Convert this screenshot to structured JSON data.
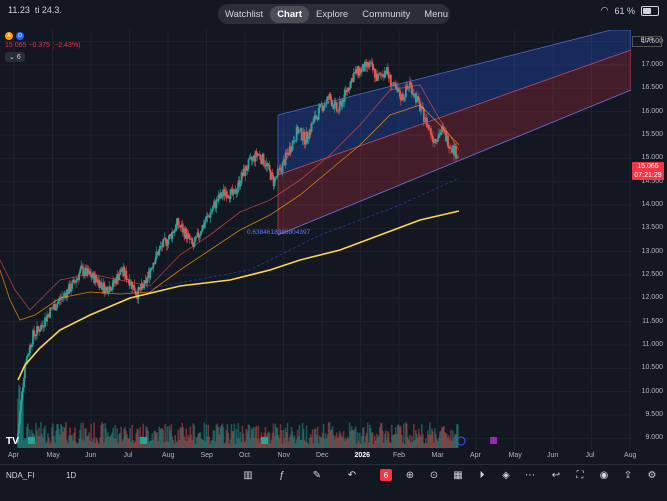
{
  "status_bar": {
    "time": "11.23",
    "date": "ti 24.3.",
    "battery": "61 %"
  },
  "nav": {
    "tabs": [
      {
        "label": "Watchlist",
        "active": false
      },
      {
        "label": "Chart",
        "active": true
      },
      {
        "label": "Explore",
        "active": false
      },
      {
        "label": "Community",
        "active": false
      },
      {
        "label": "Menu",
        "active": false
      }
    ]
  },
  "legend": {
    "badge_a": "A",
    "badge_d": "D",
    "change": "15.065 −0.375 (−2.43%)",
    "indicator_count": "6"
  },
  "price_axis": {
    "currency": "EUR",
    "ticks": [
      "17.500",
      "17.000",
      "16.500",
      "16.000",
      "15.500",
      "15.000",
      "14.500",
      "14.000",
      "13.500",
      "13.000",
      "12.500",
      "12.000",
      "11.500",
      "11.000",
      "10.500",
      "10.000",
      "9.500",
      "9.000"
    ],
    "last_price": "15.065",
    "countdown": "07:21:29"
  },
  "time_axis": {
    "ticks": [
      {
        "label": "Apr",
        "bold": false
      },
      {
        "label": "May",
        "bold": false
      },
      {
        "label": "Jun",
        "bold": false
      },
      {
        "label": "Jul",
        "bold": false
      },
      {
        "label": "Aug",
        "bold": false
      },
      {
        "label": "Sep",
        "bold": false
      },
      {
        "label": "Oct",
        "bold": false
      },
      {
        "label": "Nov",
        "bold": false
      },
      {
        "label": "Dec",
        "bold": false
      },
      {
        "label": "2026",
        "bold": true
      },
      {
        "label": "Feb",
        "bold": false
      },
      {
        "label": "Mar",
        "bold": false
      },
      {
        "label": "Apr",
        "bold": false
      },
      {
        "label": "May",
        "bold": false
      },
      {
        "label": "Jun",
        "bold": false
      },
      {
        "label": "Jul",
        "bold": false
      },
      {
        "label": "Aug",
        "bold": false
      }
    ]
  },
  "fib_label": "0.6384618388804397",
  "bottom_bar": {
    "symbol": "NDA_FI",
    "interval": "1D"
  },
  "colors": {
    "up": "#26a69a",
    "down": "#ef5350",
    "ma200": "#ffd54f",
    "channel_blue": "#2962ff",
    "channel_red": "#f23645"
  },
  "chart_data": {
    "type": "candlestick",
    "title": "NDA_FI · 1D",
    "y_axis_range": [
      8.75,
      17.75
    ],
    "last_price": 15.065,
    "closes_approx": [
      8.9,
      10.6,
      11.2,
      11.4,
      11.7,
      11.9,
      12.1,
      12.3,
      12.6,
      12.5,
      12.4,
      12.2,
      12.3,
      12.6,
      12.4,
      12.1,
      12.3,
      12.8,
      13.1,
      13.3,
      13.6,
      13.4,
      13.1,
      13.5,
      13.8,
      14.1,
      14.3,
      14.2,
      14.6,
      14.9,
      15.1,
      14.9,
      14.5,
      14.8,
      15.2,
      15.6,
      15.4,
      15.8,
      16.1,
      16.3,
      16.0,
      16.4,
      16.8,
      16.9,
      17.0,
      16.7,
      16.9,
      16.5,
      16.3,
      16.6,
      16.2,
      15.8,
      15.4,
      15.6,
      15.3,
      15.065
    ]
  }
}
